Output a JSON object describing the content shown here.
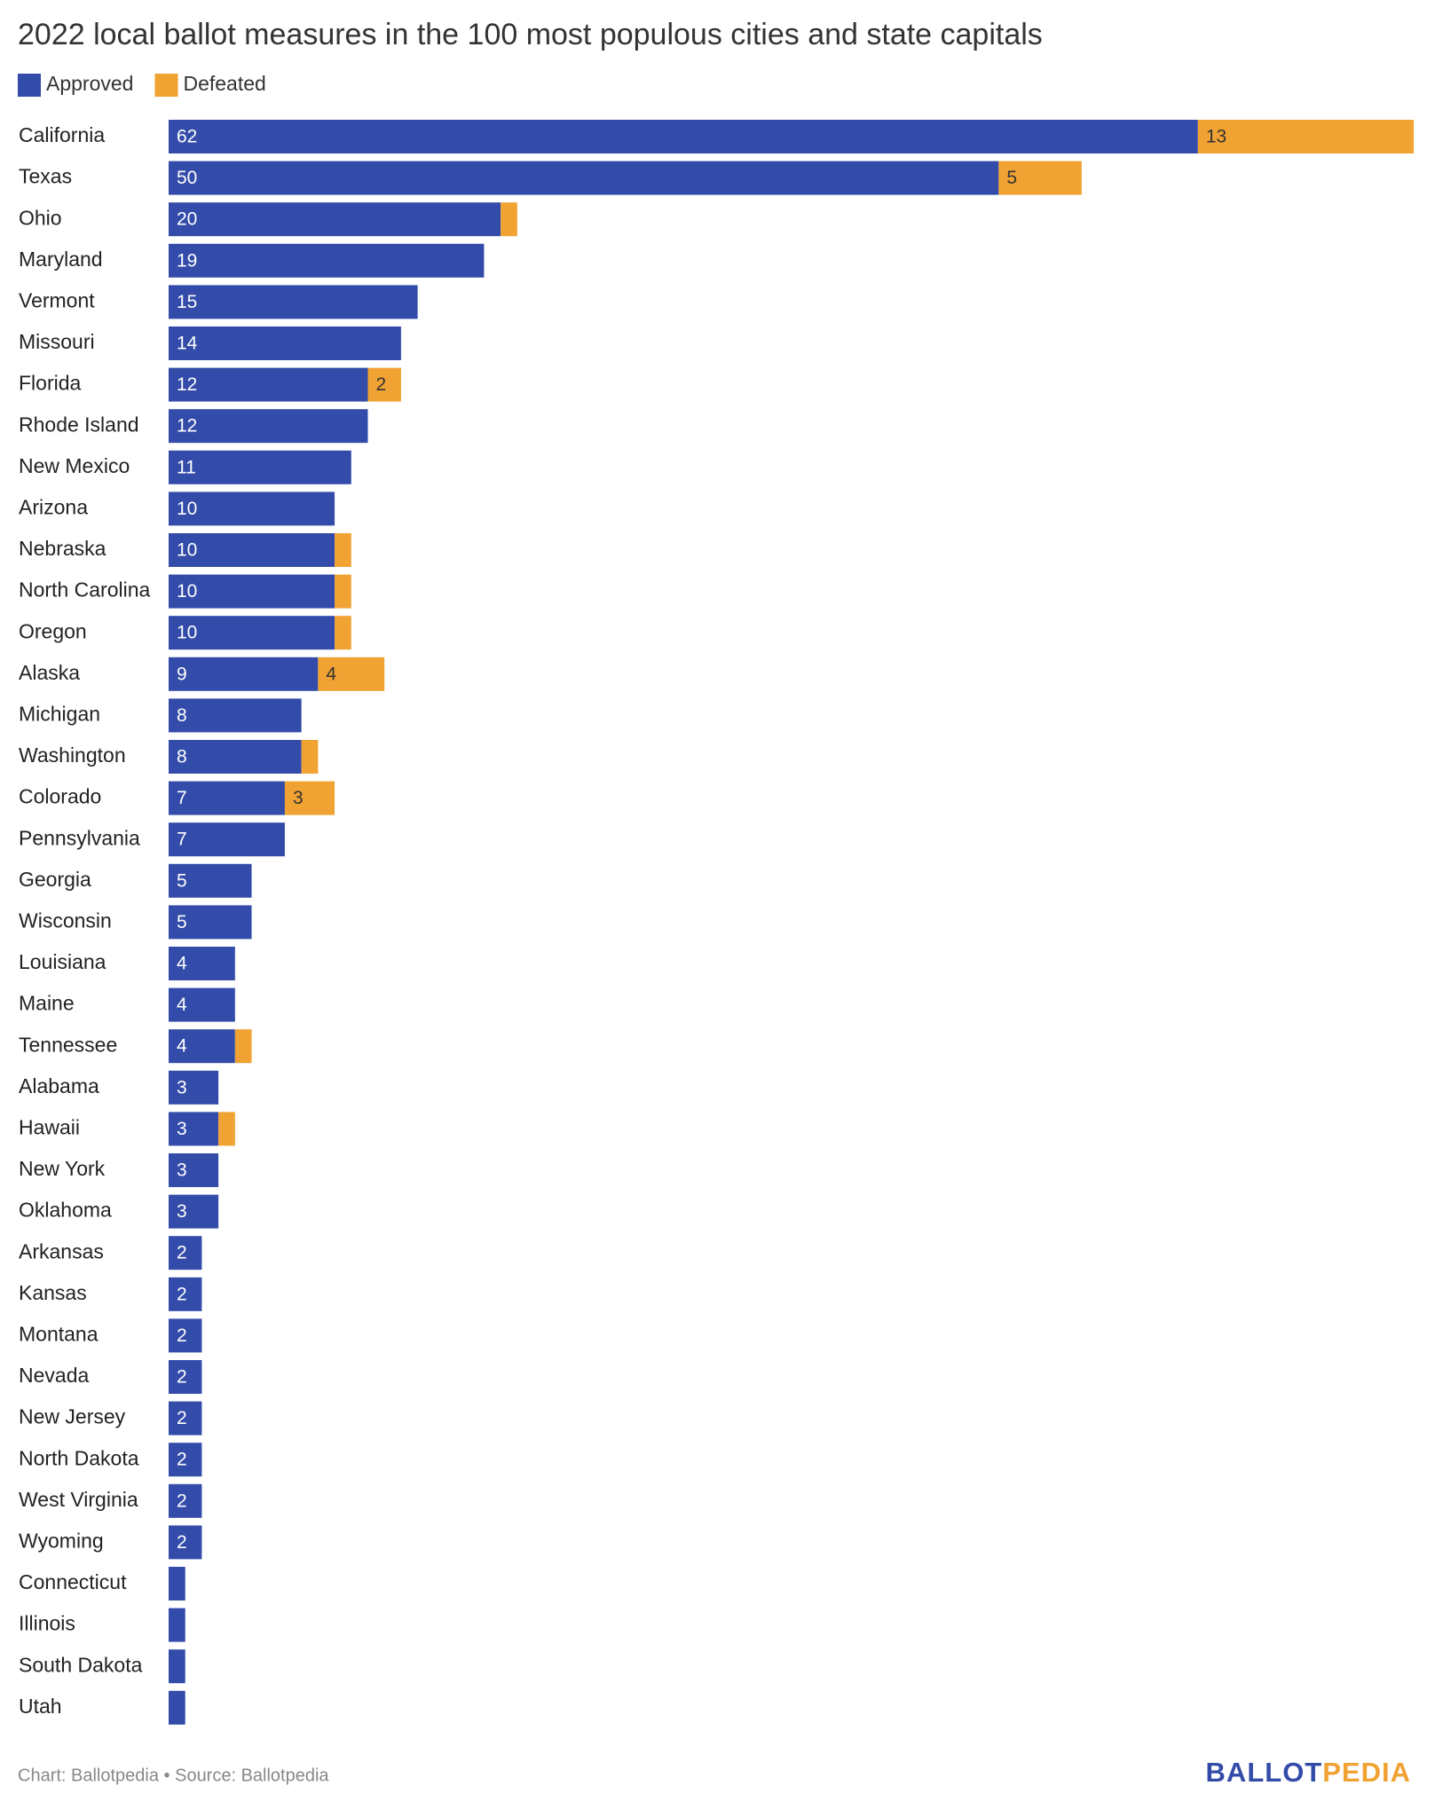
{
  "chart_data": {
    "type": "stacked-bar-horizontal",
    "title": "2022 local ballot measures in the 100 most populous cities and state capitals",
    "categories": [
      "California",
      "Texas",
      "Ohio",
      "Maryland",
      "Vermont",
      "Missouri",
      "Florida",
      "Rhode Island",
      "New Mexico",
      "Arizona",
      "Nebraska",
      "North Carolina",
      "Oregon",
      "Alaska",
      "Michigan",
      "Washington",
      "Colorado",
      "Pennsylvania",
      "Georgia",
      "Wisconsin",
      "Louisiana",
      "Maine",
      "Tennessee",
      "Alabama",
      "Hawaii",
      "New York",
      "Oklahoma",
      "Arkansas",
      "Kansas",
      "Montana",
      "Nevada",
      "New Jersey",
      "North Dakota",
      "West Virginia",
      "Wyoming",
      "Connecticut",
      "Illinois",
      "South Dakota",
      "Utah"
    ],
    "series": [
      {
        "name": "Approved",
        "color": "#334ba9",
        "values": [
          62,
          50,
          20,
          19,
          15,
          14,
          12,
          12,
          11,
          10,
          10,
          10,
          10,
          9,
          8,
          8,
          7,
          7,
          5,
          5,
          4,
          4,
          4,
          3,
          3,
          3,
          3,
          2,
          2,
          2,
          2,
          2,
          2,
          2,
          2,
          1,
          1,
          1,
          1
        ]
      },
      {
        "name": "Defeated",
        "color": "#f0a233",
        "values": [
          13,
          5,
          1,
          0,
          0,
          0,
          2,
          0,
          0,
          0,
          1,
          1,
          1,
          4,
          0,
          1,
          3,
          0,
          0,
          0,
          0,
          0,
          1,
          0,
          1,
          0,
          0,
          0,
          0,
          0,
          0,
          0,
          0,
          0,
          0,
          0,
          0,
          0,
          0
        ]
      }
    ],
    "source": "Chart: Ballotpedia • Source: Ballotpedia",
    "logo": [
      "BALLOT",
      "PEDIA"
    ]
  }
}
